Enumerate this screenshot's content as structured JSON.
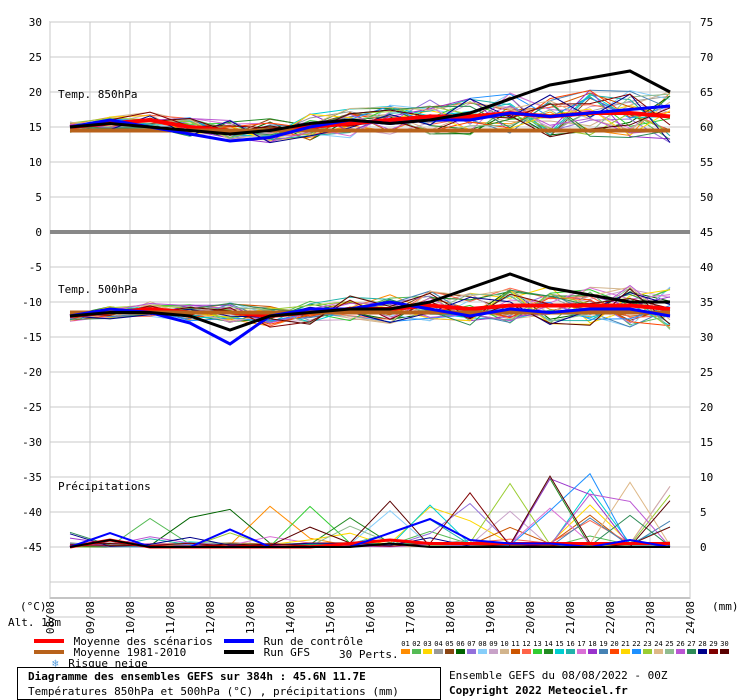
{
  "chart_data": {
    "type": "line",
    "title": "Diagramme des ensembles GEFS sur 384h : 45.6N 11.7E",
    "subtitle": "Températures 850hPa et 500hPa (°C) , précipitations (mm)",
    "x_tick_labels": [
      "09/08",
      "10/08",
      "11/08",
      "12/08",
      "13/08",
      "14/08",
      "15/08",
      "16/08",
      "17/08",
      "18/08",
      "19/08",
      "20/08",
      "21/08",
      "22/08",
      "23/08",
      "24/08"
    ],
    "x_start_label": "08/08",
    "left_axis": {
      "unit": "(°C)",
      "ticks": [
        30,
        25,
        20,
        15,
        10,
        5,
        0,
        -5,
        -10,
        -15,
        -20,
        -25,
        -30,
        -35,
        -40,
        -45
      ]
    },
    "right_axis": {
      "unit": "(mm)",
      "ticks": [
        75,
        70,
        65,
        60,
        55,
        50,
        45,
        40,
        35,
        30,
        25,
        20,
        15,
        10,
        5,
        0
      ]
    },
    "panels": [
      {
        "label": "Temp. 850hPa",
        "unit": "°C"
      },
      {
        "label": "Temp. 500hPa",
        "unit": "°C"
      },
      {
        "label": "Précipitations",
        "unit": "mm"
      }
    ],
    "alt_label": "Alt. 18m",
    "series": [
      {
        "name": "Moyenne des scénarios",
        "color": "#ff0000",
        "t850": [
          15,
          15.5,
          16,
          15,
          14.5,
          14.5,
          15,
          15.5,
          16,
          16.5,
          16.5,
          17,
          16.5,
          17,
          17,
          16.5
        ],
        "t500": [
          -12,
          -11.5,
          -11,
          -11.5,
          -11.5,
          -12,
          -11.5,
          -11,
          -11,
          -10.5,
          -11,
          -10.5,
          -10.5,
          -10.5,
          -10.5,
          -11
        ],
        "precip": [
          0,
          1,
          0,
          0,
          0,
          0,
          0,
          0.5,
          1,
          0.5,
          0.5,
          0.5,
          0.5,
          0.5,
          0.5,
          0.5
        ]
      },
      {
        "name": "Moyenne 1981-2010",
        "color": "#b8621b",
        "t850": [
          14.5,
          14.5,
          14.5,
          14.5,
          14.5,
          14.5,
          14.5,
          14.5,
          14.5,
          14.5,
          14.5,
          14.5,
          14.5,
          14.5,
          14.5,
          14.5
        ],
        "t500": [
          -11.5,
          -11.5,
          -11.5,
          -11.5,
          -11.5,
          -11.5,
          -11.5,
          -11.5,
          -11.5,
          -11.5,
          -11.5,
          -11.5,
          -11.5,
          -11.5,
          -11.5,
          -11.5
        ]
      },
      {
        "name": "Run de contrôle",
        "color": "#0000ff",
        "t850": [
          15,
          16,
          15,
          14,
          13,
          13.5,
          15,
          16,
          15.5,
          16,
          16,
          17,
          16.5,
          17,
          17.5,
          18
        ],
        "t500": [
          -12,
          -11,
          -11.5,
          -13,
          -16,
          -12,
          -11,
          -11,
          -10,
          -11,
          -12,
          -11,
          -11.5,
          -11,
          -11,
          -12
        ],
        "precip": [
          0,
          2,
          0,
          0,
          2.5,
          0,
          0,
          0,
          2,
          4,
          1,
          0.5,
          0.5,
          0,
          1,
          0
        ]
      },
      {
        "name": "Run GFS",
        "color": "#000000",
        "t850": [
          15,
          15.5,
          15,
          14.5,
          14,
          14.5,
          15.5,
          16,
          15.5,
          16,
          17,
          19,
          21,
          22,
          23,
          20
        ],
        "t500": [
          -12,
          -11.5,
          -11.5,
          -12,
          -14,
          -12,
          -11.5,
          -11,
          -11,
          -10,
          -8,
          -6,
          -8,
          -9,
          -10,
          -10
        ],
        "precip": [
          0,
          1,
          0,
          0,
          0,
          0,
          0,
          0,
          0.5,
          0,
          0,
          0,
          0,
          0,
          0,
          0
        ]
      }
    ],
    "ylim": [
      -60,
      30
    ]
  },
  "legend": {
    "mean": "Moyenne des scénarios",
    "climo": "Moyenne 1981-2010",
    "snow": "Risque neige",
    "control": "Run de contrôle",
    "gfs": "Run GFS",
    "perts_label": "30 Perts.",
    "pert_numbers": [
      "01",
      "02",
      "03",
      "04",
      "05",
      "06",
      "07",
      "08",
      "09",
      "10",
      "11",
      "12",
      "13",
      "14",
      "15",
      "16",
      "17",
      "18",
      "19",
      "20",
      "21",
      "22",
      "23",
      "24",
      "25",
      "26",
      "27",
      "28",
      "29",
      "30"
    ],
    "pert_colors": [
      "#ff8c00",
      "#55bb55",
      "#ffd700",
      "#999999",
      "#8b4513",
      "#006400",
      "#9370db",
      "#87cefa",
      "#c8a2c8",
      "#d2b48c",
      "#cc5500",
      "#ff6347",
      "#32cd32",
      "#228b22",
      "#00ced1",
      "#20b2aa",
      "#da70d6",
      "#9932cc",
      "#4682b4",
      "#ff4500",
      "#ffd700",
      "#1e90ff",
      "#9acd32",
      "#deb887",
      "#8fbc8f",
      "#ba55d3",
      "#2e8b57",
      "#00008b",
      "#800000",
      "#5a0000"
    ]
  },
  "footer": {
    "title": "Diagramme des ensembles GEFS sur 384h : 45.6N 11.7E",
    "subtitle": "Températures 850hPa et 500hPa (°C) , précipitations (mm)",
    "run": "Ensemble GEFS du 08/08/2022 - 00Z",
    "copyright": "Copyright 2022 Meteociel.fr"
  }
}
